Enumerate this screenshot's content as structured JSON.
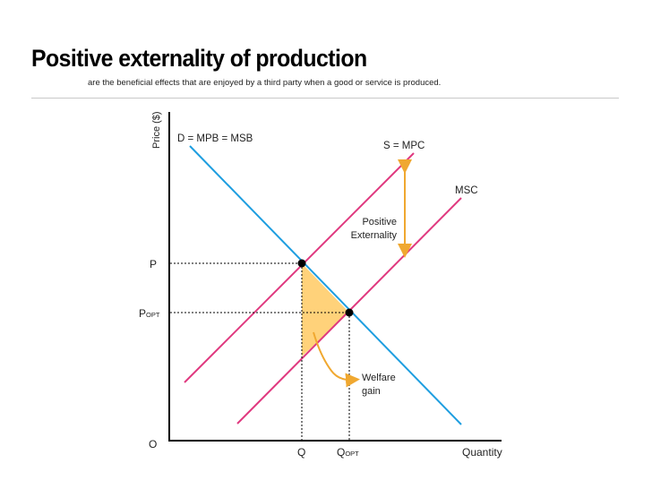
{
  "header": {
    "title": "Positive externality of production",
    "subtitle": "are the beneficial effects that are enjoyed by a third party when a good or service is produced."
  },
  "axes": {
    "y_label": "Price ($)",
    "x_label": "Quantity",
    "origin_label": "O"
  },
  "curves": {
    "demand_label": "D = MPB = MSB",
    "supply_label": "S = MPC",
    "msc_label": "MSC"
  },
  "markers": {
    "p_label": "P",
    "p_opt_main": "P",
    "p_opt_sub": "OPT",
    "q_label": "Q",
    "q_opt_main": "Q",
    "q_opt_sub": "OPT"
  },
  "annotations": {
    "externality_line1": "Positive",
    "externality_line2": "Externality",
    "welfare_line1": "Welfare",
    "welfare_line2": "gain"
  },
  "colors": {
    "demand": "#1e9ee0",
    "supply": "#e0397f",
    "arrow": "#f0a830",
    "welfare_fill": "#ffd27a",
    "axis": "#000000"
  }
}
